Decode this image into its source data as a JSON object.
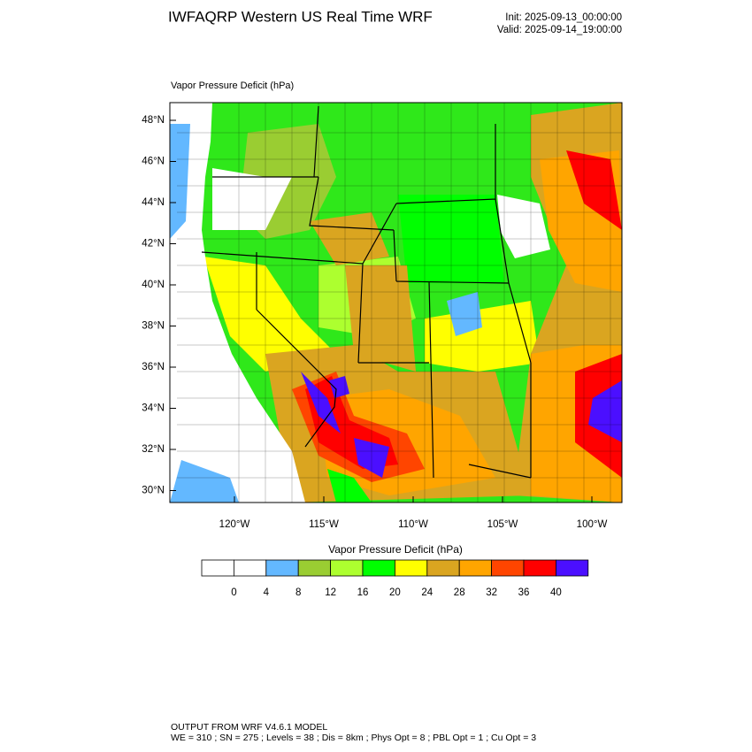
{
  "header": {
    "title": "IWFAQRP Western US Real Time WRF",
    "init": "Init: 2025-09-13_00:00:00",
    "valid": "Valid: 2025-09-14_19:00:00"
  },
  "map": {
    "label": "Vapor Pressure Deficit   (hPa)",
    "lat_ticks": [
      "48°N",
      "46°N",
      "44°N",
      "42°N",
      "40°N",
      "38°N",
      "36°N",
      "34°N",
      "32°N",
      "30°N"
    ],
    "lon_ticks": [
      "120°W",
      "115°W",
      "110°W",
      "105°W",
      "100°W"
    ]
  },
  "colorbar": {
    "title": "Vapor Pressure Deficit  (hPa)",
    "labels": [
      0,
      4,
      8,
      12,
      16,
      20,
      24,
      28,
      32,
      36,
      40
    ],
    "colors": [
      "#ffffff",
      "#ffffff",
      "#63b8ff",
      "#9acd32",
      "#adff2f",
      "#00ff00",
      "#ffff00",
      "#daa520",
      "#ffa500",
      "#ff4500",
      "#ff0000",
      "#4b0fff"
    ]
  },
  "footer": {
    "line1": "OUTPUT FROM WRF V4.6.1 MODEL",
    "line2": "WE = 310 ; SN = 275 ; Levels = 38 ; Dis = 8km ; Phys Opt = 8 ; PBL Opt = 1 ; Cu Opt = 3"
  }
}
